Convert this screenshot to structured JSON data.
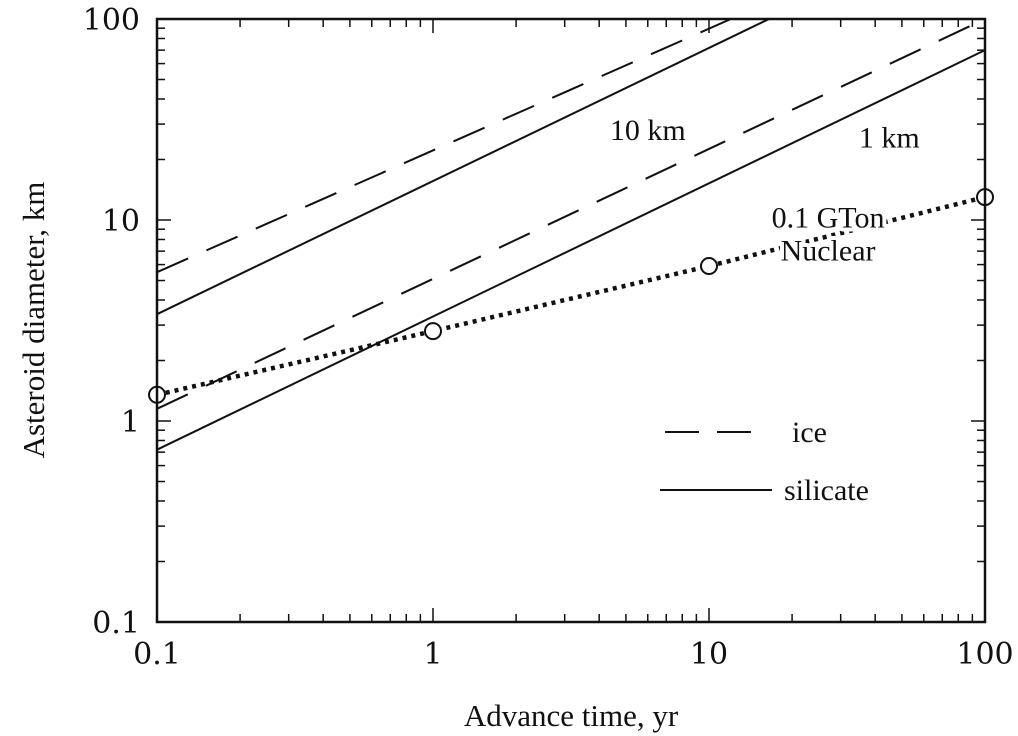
{
  "chart_data": {
    "type": "line",
    "xlabel": "Advance time, yr",
    "ylabel": "Asteroid diameter, km",
    "xscale": "log",
    "yscale": "log",
    "xlim": [
      0.1,
      100
    ],
    "ylim": [
      0.1,
      100
    ],
    "x_tick_labels": [
      "0.1",
      "1",
      "10",
      "100"
    ],
    "y_tick_labels": [
      "0.1",
      "1",
      "10",
      "100"
    ],
    "grid": false,
    "series": [
      {
        "group": "10 km",
        "material": "ice",
        "style": "dashed",
        "x": [
          0.1,
          12
        ],
        "y": [
          5.5,
          100
        ]
      },
      {
        "group": "10 km",
        "material": "silicate",
        "style": "solid",
        "x": [
          0.1,
          16.5
        ],
        "y": [
          3.4,
          100
        ]
      },
      {
        "group": "1 km",
        "material": "ice",
        "style": "dashed",
        "x": [
          0.1,
          100
        ],
        "y": [
          1.15,
          100
        ]
      },
      {
        "group": "1 km",
        "material": "silicate",
        "style": "solid",
        "x": [
          0.1,
          100
        ],
        "y": [
          0.72,
          70
        ]
      },
      {
        "name": "0.1 GTon Nuclear",
        "style": "dotted",
        "markers": "circle",
        "x": [
          0.1,
          1,
          10,
          100
        ],
        "y": [
          1.35,
          2.8,
          5.9,
          13
        ]
      }
    ],
    "annotations": [
      {
        "text": "10 km",
        "x": 6,
        "y": 25
      },
      {
        "text": "1 km",
        "x": 45,
        "y": 23
      },
      {
        "text": "0.1 GTon",
        "x": 27,
        "y": 9.2
      },
      {
        "text": "Nuclear",
        "x": 27,
        "y": 6.3
      }
    ],
    "legend": {
      "placement": "lower-right",
      "entries": [
        {
          "label": "ice",
          "style": "dashed"
        },
        {
          "label": "silicate",
          "style": "solid"
        }
      ]
    }
  }
}
